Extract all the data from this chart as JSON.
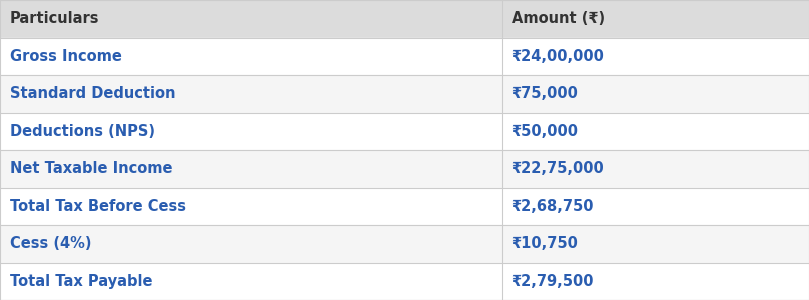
{
  "headers": [
    "Particulars",
    "Amount (₹)"
  ],
  "rows": [
    [
      "Gross Income",
      "₹24,00,000"
    ],
    [
      "Standard Deduction",
      "₹75,000"
    ],
    [
      "Deductions (NPS)",
      "₹50,000"
    ],
    [
      "Net Taxable Income",
      "₹22,75,000"
    ],
    [
      "Total Tax Before Cess",
      "₹2,68,750"
    ],
    [
      "Cess (4%)",
      "₹10,750"
    ],
    [
      "Total Tax Payable",
      "₹2,79,500"
    ]
  ],
  "header_bg": "#dcdcdc",
  "row_bg_odd": "#ffffff",
  "row_bg_even": "#f5f5f5",
  "header_text_color": "#333333",
  "row_text_color": "#2a5db0",
  "border_color": "#cccccc",
  "col_split": 0.62,
  "font_size": 10.5,
  "header_font_size": 10.5
}
